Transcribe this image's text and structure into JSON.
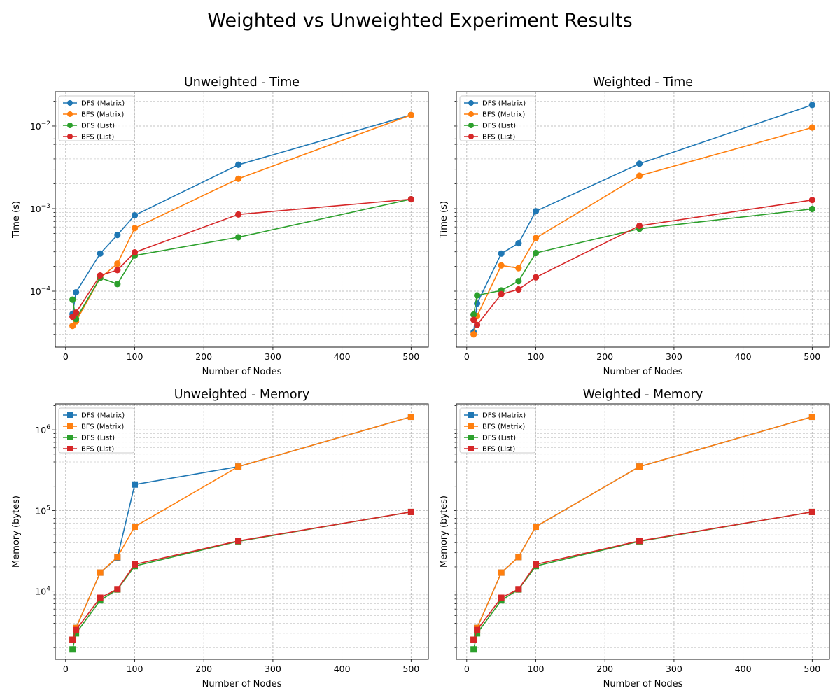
{
  "figure": {
    "title": "Weighted vs Unweighted Experiment Results"
  },
  "colors": {
    "dfs_matrix": "#1f77b4",
    "bfs_matrix": "#ff7f0e",
    "dfs_list": "#2ca02c",
    "bfs_list": "#d62728"
  },
  "chart_data": [
    {
      "type": "line",
      "title": "Unweighted - Time",
      "xlabel": "Number of Nodes",
      "ylabel": "Time (s)",
      "yscale": "log",
      "marker": "circle",
      "grid": true,
      "legend": "top-left",
      "xlim": [
        -15,
        525
      ],
      "ylim": [
        2.1e-05,
        0.026
      ],
      "x_ticks": [
        0,
        100,
        200,
        300,
        400,
        500
      ],
      "y_ticks": [
        {
          "v": 0.0001,
          "m": "10",
          "e": "−4"
        },
        {
          "v": 0.001,
          "m": "10",
          "e": "−3"
        },
        {
          "v": 0.01,
          "m": "10",
          "e": "−2"
        }
      ],
      "x": [
        10,
        15,
        50,
        75,
        100,
        250,
        500
      ],
      "series": [
        {
          "name": "DFS (Matrix)",
          "color": "#1f77b4",
          "values": [
            5.3e-05,
            9.7e-05,
            0.000285,
            0.00048,
            0.00083,
            0.0034,
            0.0136
          ]
        },
        {
          "name": "BFS (Matrix)",
          "color": "#ff7f0e",
          "values": [
            3.8e-05,
            4.3e-05,
            0.000145,
            0.000215,
            0.00058,
            0.0023,
            0.0136
          ]
        },
        {
          "name": "DFS (List)",
          "color": "#2ca02c",
          "values": [
            7.9e-05,
            4.6e-05,
            0.000145,
            0.000122,
            0.00027,
            0.00045,
            0.0013
          ]
        },
        {
          "name": "BFS (List)",
          "color": "#d62728",
          "values": [
            4.9e-05,
            5.5e-05,
            0.000155,
            0.00018,
            0.000295,
            0.00085,
            0.0013
          ]
        }
      ]
    },
    {
      "type": "line",
      "title": "Weighted - Time",
      "xlabel": "Number of Nodes",
      "ylabel": "Time (s)",
      "yscale": "log",
      "marker": "circle",
      "grid": true,
      "legend": "top-left",
      "xlim": [
        -15,
        525
      ],
      "ylim": [
        2.1e-05,
        0.026
      ],
      "x_ticks": [
        0,
        100,
        200,
        300,
        400,
        500
      ],
      "y_ticks": [
        {
          "v": 0.0001,
          "m": "10",
          "e": "−4"
        },
        {
          "v": 0.001,
          "m": "10",
          "e": "−3"
        },
        {
          "v": 0.01,
          "m": "10",
          "e": "−2"
        }
      ],
      "x": [
        10,
        15,
        50,
        75,
        100,
        250,
        500
      ],
      "series": [
        {
          "name": "DFS (Matrix)",
          "color": "#1f77b4",
          "values": [
            3.2e-05,
            7.1e-05,
            0.000285,
            0.00038,
            0.00093,
            0.0035,
            0.018
          ]
        },
        {
          "name": "BFS (Matrix)",
          "color": "#ff7f0e",
          "values": [
            3e-05,
            5e-05,
            0.000205,
            0.00019,
            0.00044,
            0.0025,
            0.0096
          ]
        },
        {
          "name": "DFS (List)",
          "color": "#2ca02c",
          "values": [
            5.2e-05,
            8.9e-05,
            0.000102,
            0.000132,
            0.00029,
            0.00057,
            0.00099
          ]
        },
        {
          "name": "BFS (List)",
          "color": "#d62728",
          "values": [
            4.5e-05,
            3.9e-05,
            9.2e-05,
            0.000105,
            0.000147,
            0.00062,
            0.00127
          ]
        }
      ]
    },
    {
      "type": "line",
      "title": "Unweighted - Memory",
      "xlabel": "Number of Nodes",
      "ylabel": "Memory (bytes)",
      "yscale": "log",
      "marker": "square",
      "grid": true,
      "legend": "top-left",
      "xlim": [
        -15,
        525
      ],
      "ylim": [
        1430,
        2100000.0
      ],
      "x_ticks": [
        0,
        100,
        200,
        300,
        400,
        500
      ],
      "y_ticks": [
        {
          "v": 10000.0,
          "m": "10",
          "e": "4"
        },
        {
          "v": 100000.0,
          "m": "10",
          "e": "5"
        },
        {
          "v": 1000000.0,
          "m": "10",
          "e": "6"
        }
      ],
      "x": [
        10,
        15,
        50,
        75,
        100,
        250,
        500
      ],
      "series": [
        {
          "name": "DFS (Matrix)",
          "color": "#1f77b4",
          "values": [
            2500,
            3500,
            17000,
            26000,
            210000,
            350000,
            1450000
          ]
        },
        {
          "name": "BFS (Matrix)",
          "color": "#ff7f0e",
          "values": [
            2500,
            3500,
            17000,
            26500,
            63000,
            350000,
            1450000
          ]
        },
        {
          "name": "DFS (List)",
          "color": "#2ca02c",
          "values": [
            1900,
            3000,
            7700,
            10500,
            20500,
            41500,
            96000
          ]
        },
        {
          "name": "BFS (List)",
          "color": "#d62728",
          "values": [
            2500,
            3300,
            8300,
            10600,
            21500,
            42000,
            96000
          ]
        }
      ]
    },
    {
      "type": "line",
      "title": "Weighted - Memory",
      "xlabel": "Number of Nodes",
      "ylabel": "Memory (bytes)",
      "yscale": "log",
      "marker": "square",
      "grid": true,
      "legend": "top-left",
      "xlim": [
        -15,
        525
      ],
      "ylim": [
        1430,
        2100000.0
      ],
      "x_ticks": [
        0,
        100,
        200,
        300,
        400,
        500
      ],
      "y_ticks": [
        {
          "v": 10000.0,
          "m": "10",
          "e": "4"
        },
        {
          "v": 100000.0,
          "m": "10",
          "e": "5"
        },
        {
          "v": 1000000.0,
          "m": "10",
          "e": "6"
        }
      ],
      "x": [
        10,
        15,
        50,
        75,
        100,
        250,
        500
      ],
      "series": [
        {
          "name": "DFS (Matrix)",
          "color": "#1f77b4",
          "values": [
            2500,
            3500,
            17000,
            26500,
            63000,
            350000,
            1450000
          ]
        },
        {
          "name": "BFS (Matrix)",
          "color": "#ff7f0e",
          "values": [
            2500,
            3500,
            17000,
            26500,
            63000,
            350000,
            1450000
          ]
        },
        {
          "name": "DFS (List)",
          "color": "#2ca02c",
          "values": [
            1900,
            3000,
            7700,
            10500,
            20500,
            41500,
            96000
          ]
        },
        {
          "name": "BFS (List)",
          "color": "#d62728",
          "values": [
            2500,
            3300,
            8300,
            10600,
            21500,
            42000,
            96000
          ]
        }
      ]
    }
  ]
}
